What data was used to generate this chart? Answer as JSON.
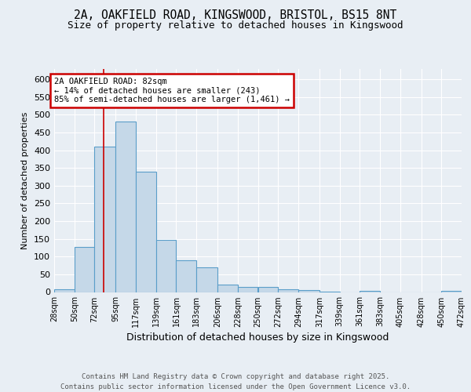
{
  "title_line1": "2A, OAKFIELD ROAD, KINGSWOOD, BRISTOL, BS15 8NT",
  "title_line2": "Size of property relative to detached houses in Kingswood",
  "xlabel": "Distribution of detached houses by size in Kingswood",
  "ylabel": "Number of detached properties",
  "bin_edges": [
    28,
    50,
    72,
    95,
    117,
    139,
    161,
    183,
    206,
    228,
    250,
    272,
    294,
    317,
    339,
    361,
    383,
    405,
    428,
    450,
    472
  ],
  "bar_heights": [
    8,
    128,
    410,
    480,
    340,
    148,
    90,
    70,
    20,
    14,
    15,
    8,
    6,
    2,
    0,
    4,
    0,
    0,
    0,
    4
  ],
  "bar_color": "#c5d8e8",
  "bar_edge_color": "#5a9ec9",
  "bar_linewidth": 0.8,
  "vline_x": 82,
  "vline_color": "#cc0000",
  "annotation_text": "2A OAKFIELD ROAD: 82sqm\n← 14% of detached houses are smaller (243)\n85% of semi-detached houses are larger (1,461) →",
  "annotation_box_color": "white",
  "annotation_box_edge": "#cc0000",
  "ylim": [
    0,
    630
  ],
  "yticks": [
    0,
    50,
    100,
    150,
    200,
    250,
    300,
    350,
    400,
    450,
    500,
    550,
    600
  ],
  "bg_color": "#e8eef4",
  "plot_bg_color": "#e8eef4",
  "grid_color": "white",
  "footer_text": "Contains HM Land Registry data © Crown copyright and database right 2025.\nContains public sector information licensed under the Open Government Licence v3.0.",
  "tick_labels": [
    "28sqm",
    "50sqm",
    "72sqm",
    "95sqm",
    "117sqm",
    "139sqm",
    "161sqm",
    "183sqm",
    "206sqm",
    "228sqm",
    "250sqm",
    "272sqm",
    "294sqm",
    "317sqm",
    "339sqm",
    "361sqm",
    "383sqm",
    "405sqm",
    "428sqm",
    "450sqm",
    "472sqm"
  ]
}
